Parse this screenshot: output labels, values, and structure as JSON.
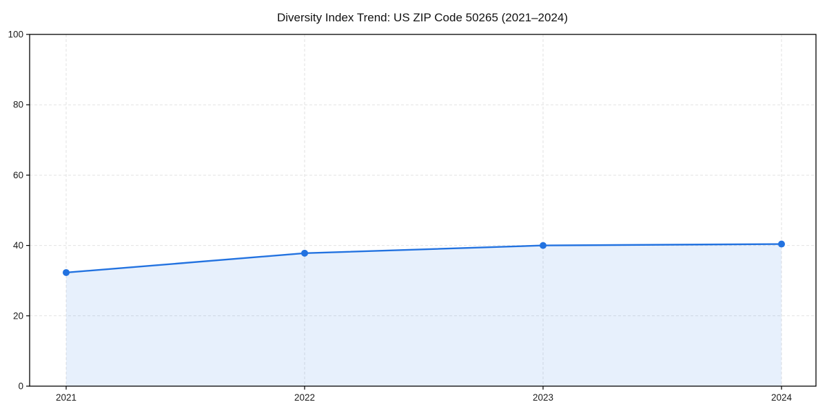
{
  "chart_data": {
    "type": "area",
    "title": "Diversity Index Trend: US ZIP Code 50265 (2021–2024)",
    "categories": [
      "2021",
      "2022",
      "2023",
      "2024"
    ],
    "series": [
      {
        "name": "Diversity Index",
        "values": [
          32.3,
          37.8,
          40.0,
          40.4
        ]
      }
    ],
    "xlabel": "",
    "ylabel": "",
    "ylim": [
      0,
      100
    ],
    "yticks": [
      0,
      20,
      40,
      60,
      80,
      100
    ],
    "grid": "dashed-both-axes",
    "legend_position": "none",
    "marker": "circle",
    "colors": {
      "line": "#2272e0",
      "marker": "#2272e0",
      "area_fill": "rgba(34,114,224,0.11)",
      "grid": "#e2e2e2",
      "axis": "#000000",
      "tick_label": "#1a1a1a",
      "background": "#ffffff"
    }
  }
}
